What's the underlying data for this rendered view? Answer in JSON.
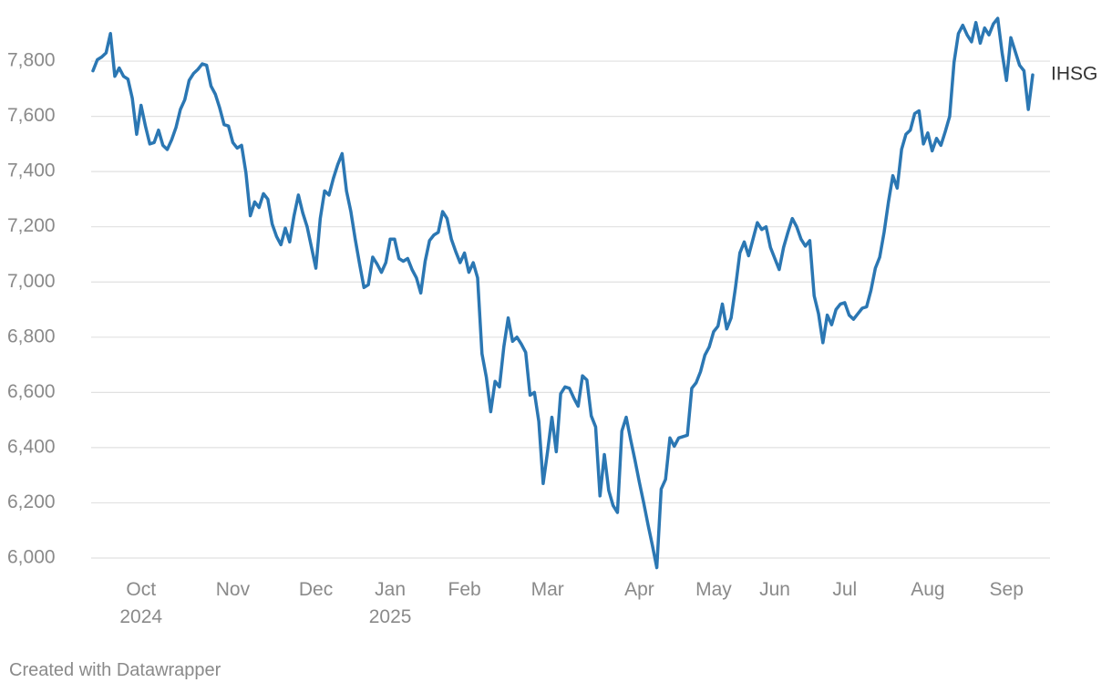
{
  "chart_data": {
    "type": "line",
    "categories": [
      null,
      null,
      null,
      null,
      null,
      null,
      null,
      null,
      null,
      null,
      null,
      "Oct 2024",
      null,
      null,
      null,
      null,
      null,
      null,
      null,
      null,
      null,
      null,
      null,
      null,
      null,
      null,
      null,
      null,
      null,
      null,
      null,
      null,
      "Nov",
      null,
      null,
      null,
      null,
      null,
      null,
      null,
      null,
      null,
      null,
      null,
      null,
      null,
      null,
      null,
      null,
      null,
      null,
      "Dec",
      null,
      null,
      null,
      null,
      null,
      null,
      null,
      null,
      null,
      null,
      null,
      null,
      null,
      null,
      null,
      null,
      "Jan 2025",
      null,
      null,
      null,
      null,
      null,
      null,
      null,
      null,
      null,
      null,
      null,
      null,
      null,
      null,
      null,
      null,
      "Feb",
      null,
      null,
      null,
      null,
      null,
      null,
      null,
      null,
      null,
      null,
      null,
      null,
      null,
      null,
      null,
      null,
      null,
      null,
      "Mar",
      null,
      null,
      null,
      null,
      null,
      null,
      null,
      null,
      null,
      null,
      null,
      null,
      null,
      null,
      null,
      null,
      null,
      null,
      null,
      null,
      "Apr",
      null,
      null,
      null,
      null,
      null,
      null,
      null,
      null,
      null,
      null,
      null,
      null,
      null,
      null,
      null,
      null,
      "May",
      null,
      null,
      null,
      null,
      null,
      null,
      null,
      null,
      null,
      null,
      null,
      null,
      null,
      "Jun",
      null,
      null,
      null,
      null,
      null,
      null,
      null,
      null,
      null,
      null,
      null,
      null,
      null,
      null,
      null,
      "Jul",
      null,
      null,
      null,
      null,
      null,
      null,
      null,
      null,
      null,
      null,
      null,
      null,
      null,
      null,
      null,
      null,
      null,
      null,
      "Aug",
      null,
      null,
      null,
      null,
      null,
      null,
      null,
      null,
      null,
      null,
      null,
      null,
      null,
      null,
      null,
      null,
      null,
      "Sep",
      null,
      null,
      null,
      null,
      null,
      null
    ],
    "series": [
      {
        "name": "IHSG",
        "color": "#2b77b3",
        "values": [
          7765,
          7805,
          7815,
          7830,
          7900,
          7745,
          7775,
          7745,
          7735,
          7665,
          7535,
          7640,
          7565,
          7500,
          7505,
          7550,
          7495,
          7480,
          7515,
          7560,
          7625,
          7660,
          7730,
          7755,
          7770,
          7790,
          7785,
          7710,
          7680,
          7630,
          7570,
          7565,
          7505,
          7485,
          7495,
          7395,
          7240,
          7290,
          7270,
          7320,
          7300,
          7210,
          7165,
          7135,
          7195,
          7145,
          7240,
          7315,
          7250,
          7200,
          7125,
          7050,
          7230,
          7330,
          7315,
          7375,
          7425,
          7465,
          7330,
          7255,
          7155,
          7065,
          6980,
          6990,
          7090,
          7065,
          7035,
          7070,
          7155,
          7155,
          7085,
          7075,
          7085,
          7045,
          7015,
          6960,
          7075,
          7150,
          7170,
          7180,
          7255,
          7230,
          7155,
          7110,
          7070,
          7105,
          7035,
          7070,
          7015,
          6740,
          6655,
          6530,
          6640,
          6620,
          6765,
          6870,
          6785,
          6800,
          6775,
          6745,
          6590,
          6600,
          6495,
          6270,
          6385,
          6510,
          6385,
          6595,
          6620,
          6615,
          6580,
          6550,
          6660,
          6645,
          6515,
          6475,
          6225,
          6375,
          6245,
          6190,
          6165,
          6460,
          6510,
          6430,
          6355,
          6275,
          6200,
          6120,
          6045,
          5965,
          6250,
          6285,
          6435,
          6405,
          6435,
          6440,
          6445,
          6615,
          6635,
          6675,
          6735,
          6765,
          6820,
          6840,
          6920,
          6830,
          6870,
          6980,
          7105,
          7145,
          7095,
          7155,
          7215,
          7190,
          7200,
          7125,
          7085,
          7045,
          7125,
          7180,
          7230,
          7200,
          7155,
          7130,
          7150,
          6950,
          6885,
          6780,
          6880,
          6845,
          6900,
          6920,
          6925,
          6880,
          6865,
          6885,
          6905,
          6910,
          6970,
          7050,
          7090,
          7180,
          7290,
          7385,
          7340,
          7480,
          7535,
          7550,
          7610,
          7620,
          7500,
          7540,
          7475,
          7520,
          7495,
          7545,
          7600,
          7795,
          7900,
          7930,
          7895,
          7870,
          7940,
          7865,
          7920,
          7895,
          7935,
          7955,
          7830,
          7730,
          7885,
          7835,
          7785,
          7765,
          7625,
          7750
        ]
      }
    ],
    "ylim": [
      5960,
      7960
    ],
    "yticks": [
      {
        "value": 6000,
        "label": "6,000"
      },
      {
        "value": 6200,
        "label": "6,200"
      },
      {
        "value": 6400,
        "label": "6,400"
      },
      {
        "value": 6600,
        "label": "6,600"
      },
      {
        "value": 6800,
        "label": "6,800"
      },
      {
        "value": 7000,
        "label": "7,000"
      },
      {
        "value": 7200,
        "label": "7,200"
      },
      {
        "value": 7400,
        "label": "7,400"
      },
      {
        "value": 7600,
        "label": "7,600"
      },
      {
        "value": 7800,
        "label": "7,800"
      }
    ],
    "grid": true,
    "credit": "Created with Datawrapper"
  }
}
